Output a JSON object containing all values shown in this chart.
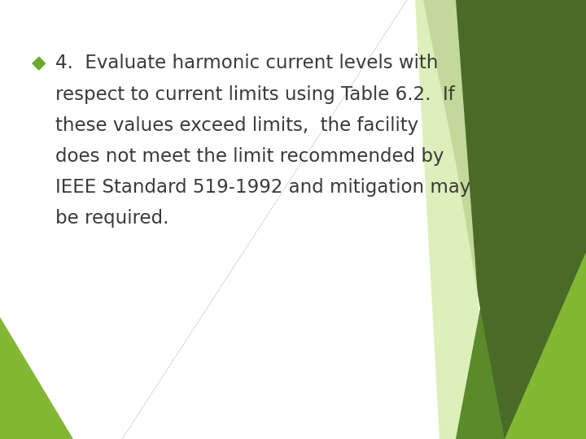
{
  "background_color": "#ffffff",
  "text_color": "#3a3a3a",
  "bullet_color": "#6aaa2a",
  "bullet_char": "◆",
  "title_line": "4.  Evaluate harmonic current levels with",
  "body_lines": [
    "respect to current limits using Table 6.2.  If",
    "these values exceed limits,  the facility",
    "does not meet the limit recommended by",
    "IEEE Standard 519-1992 and mitigation may",
    "be required."
  ],
  "font_size": 16.5,
  "font_family": "DejaVu Sans",
  "dark_olive": "#4a6b28",
  "bright_green": "#82b832",
  "mid_green": "#5a8a2a",
  "pale_green": "#d8edb0",
  "bottom_green": "#82b832"
}
